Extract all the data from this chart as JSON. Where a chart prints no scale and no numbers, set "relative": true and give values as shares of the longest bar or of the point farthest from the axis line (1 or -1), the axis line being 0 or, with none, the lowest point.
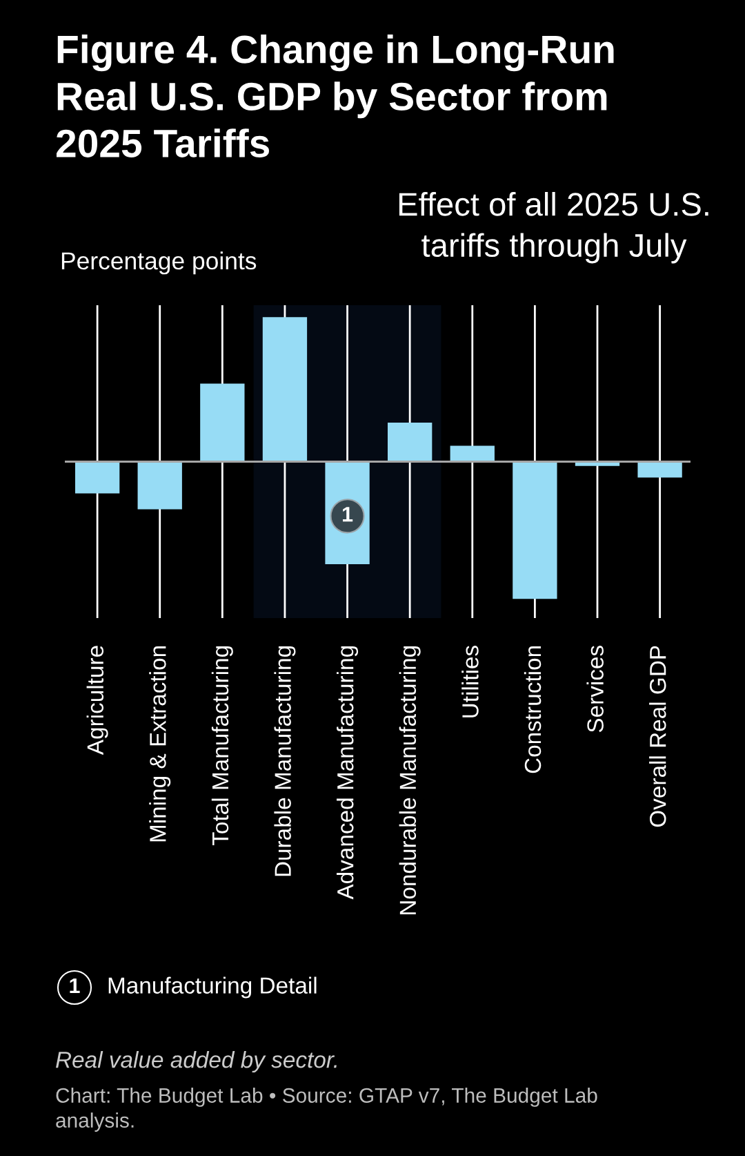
{
  "chart_data": {
    "type": "bar",
    "title": "Figure 4. Change in Long-Run Real U.S. GDP by Sector from 2025 Tariffs",
    "subtitle": "Effect of all 2025 U.S. tariffs through July",
    "ylabel": "Percentage points",
    "categories": [
      "Agriculture",
      "Mining & Extraction",
      "Total Manufacturing",
      "Durable Manufacturing",
      "Advanced Manufacturing",
      "Nondurable Manufacturing",
      "Utilities",
      "Construction",
      "Services",
      "Overall Real GDP"
    ],
    "values": [
      -0.22,
      -0.33,
      0.54,
      1,
      -0.71,
      0.27,
      0.11,
      -0.95,
      -0.03,
      -0.11
    ],
    "color": "#97dcf5",
    "relative": true,
    "grid": "x",
    "bands": [
      {
        "axis": "x",
        "from": "Durable Manufacturing",
        "to": "Nondurable Manufacturing",
        "label": "1",
        "color": "#040a14"
      }
    ],
    "ref_lines": [
      {
        "axis": "y",
        "value": 0,
        "color": "#a6a6a6"
      }
    ],
    "annotations": [
      "Manufacturing Detail",
      "Real value added by sector.",
      "Chart: The Budget Lab • Source: GTAP v7, The Budget Lab analysis."
    ]
  }
}
